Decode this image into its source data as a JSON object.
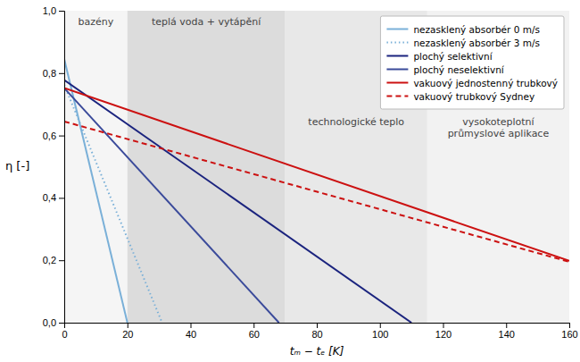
{
  "chart_data": {
    "type": "line",
    "x_label": "tₘ − tₑ [K]",
    "y_label": "η [-]",
    "xlim": [
      0,
      160
    ],
    "ylim": [
      0.0,
      1.0
    ],
    "xticks": [
      0,
      20,
      40,
      60,
      80,
      100,
      120,
      140,
      160
    ],
    "yticks": [
      {
        "value": 0.0,
        "label": "0,0"
      },
      {
        "value": 0.2,
        "label": "0,2"
      },
      {
        "value": 0.4,
        "label": "0,4"
      },
      {
        "value": 0.6,
        "label": "0,6"
      },
      {
        "value": 0.8,
        "label": "0,8"
      },
      {
        "value": 1.0,
        "label": "1,0"
      }
    ],
    "grid": false,
    "legend": "upper right",
    "zones": [
      {
        "label": "bazény",
        "xmin": 0,
        "xmax": 20,
        "color": "#f5f5f5"
      },
      {
        "label": "teplá voda + vytápění",
        "xmin": 20,
        "xmax": 70,
        "color": "#dcdcdc"
      },
      {
        "label": "technologické teplo",
        "xmin": 70,
        "xmax": 115,
        "color": "#e8e8e8"
      },
      {
        "label": "vysokoteplotní\nprůmyslové aplikace",
        "xmin": 115,
        "xmax": 160,
        "color": "#f2f2f2"
      }
    ],
    "series": [
      {
        "name": "nezasklený absorbér 0 m/s",
        "color": "#7ab0d8",
        "line_style": "solid",
        "x": [
          0,
          20
        ],
        "values": [
          0.845,
          0.0
        ]
      },
      {
        "name": "nezasklený absorbér 3 m/s",
        "color": "#7ab0d8",
        "line_style": "dotted",
        "x": [
          0,
          31
        ],
        "values": [
          0.762,
          0.0
        ]
      },
      {
        "name": "plochý selektivní",
        "color": "#1a237e",
        "line_style": "solid",
        "x": [
          0,
          110
        ],
        "values": [
          0.778,
          0.0
        ]
      },
      {
        "name": "plochý neselektivní",
        "color": "#3a4a9a",
        "line_style": "solid",
        "x": [
          0,
          68
        ],
        "values": [
          0.752,
          0.0
        ]
      },
      {
        "name": "vakuový jednostenný trubkový",
        "color": "#cc1111",
        "line_style": "solid",
        "x": [
          0,
          160
        ],
        "values": [
          0.752,
          0.198
        ]
      },
      {
        "name": "vakuový trubkový Sydney",
        "color": "#cc1111",
        "line_style": "dashed",
        "x": [
          0,
          160
        ],
        "values": [
          0.645,
          0.195
        ]
      }
    ]
  }
}
